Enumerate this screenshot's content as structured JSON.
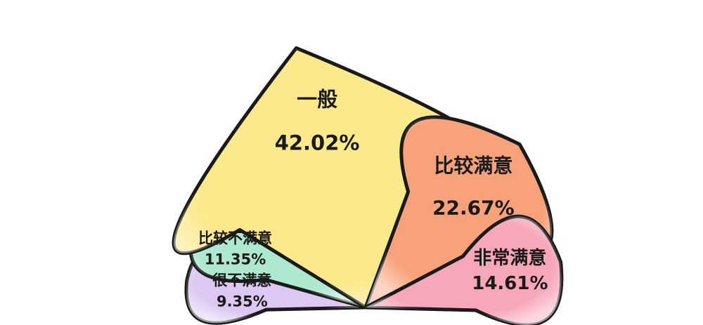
{
  "chart_data": {
    "type": "pie",
    "title": "",
    "categories": [
      "很不满意",
      "比较不满意",
      "一般",
      "比较满意",
      "非常满意"
    ],
    "values": [
      9.35,
      11.35,
      42.02,
      22.67,
      14.61
    ],
    "value_labels": [
      "9.35%",
      "11.35%",
      "42.02%",
      "22.67%",
      "14.61%"
    ],
    "colors": [
      "#dcc8f2",
      "#aee8cf",
      "#fbe98c",
      "#f7a27a",
      "#f7a7b8"
    ],
    "legend": "none"
  }
}
